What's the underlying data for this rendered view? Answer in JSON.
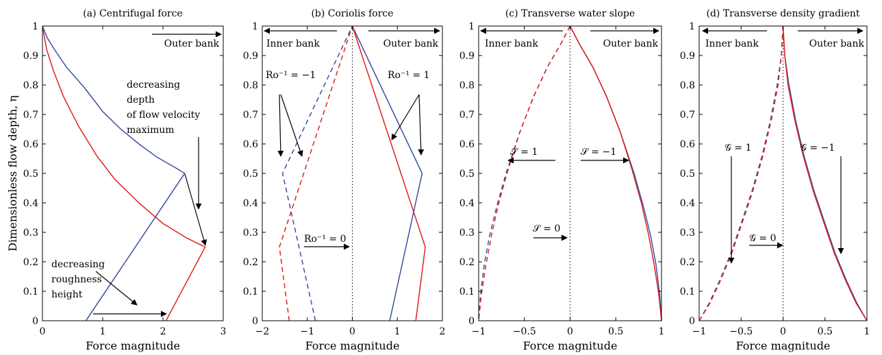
{
  "figure": {
    "ylabel": "Dimensionless flow depth, η",
    "colors": {
      "blue": "#3a4fa0",
      "red": "#e02020",
      "black": "#000000",
      "gray": "#444444"
    }
  },
  "chart_data": [
    {
      "type": "line",
      "title": "(a) Centrifugal force",
      "xlabel": "Force magnitude",
      "xlim": [
        0,
        3
      ],
      "ylim": [
        0,
        1
      ],
      "xticks": [
        "0",
        "1",
        "2",
        "3"
      ],
      "yticks": [
        "0",
        "0.1",
        "0.2",
        "0.3",
        "0.4",
        "0.5",
        "0.6",
        "0.7",
        "0.8",
        "0.9",
        "1"
      ],
      "series": [
        {
          "color": "blue",
          "dashed": false,
          "points": [
            [
              0.72,
              0
            ],
            [
              2.36,
              0.5
            ],
            [
              2.2,
              0.52
            ],
            [
              1.9,
              0.555
            ],
            [
              1.6,
              0.6
            ],
            [
              1.3,
              0.65
            ],
            [
              1.0,
              0.71
            ],
            [
              0.7,
              0.79
            ],
            [
              0.4,
              0.86
            ],
            [
              0.2,
              0.92
            ],
            [
              0.08,
              0.96
            ],
            [
              0,
              1
            ]
          ]
        },
        {
          "color": "red",
          "dashed": false,
          "points": [
            [
              2.05,
              0
            ],
            [
              2.7,
              0.25
            ],
            [
              2.4,
              0.28
            ],
            [
              2.0,
              0.33
            ],
            [
              1.6,
              0.4
            ],
            [
              1.2,
              0.48
            ],
            [
              0.9,
              0.56
            ],
            [
              0.6,
              0.66
            ],
            [
              0.35,
              0.76
            ],
            [
              0.18,
              0.85
            ],
            [
              0.07,
              0.92
            ],
            [
              0,
              1
            ]
          ]
        }
      ],
      "annotations": [
        {
          "text": "Outer bank"
        },
        {
          "text": "decreasing"
        },
        {
          "text": "depth"
        },
        {
          "text": "of flow velocity"
        },
        {
          "text": "maximum"
        },
        {
          "text": "decreasing"
        },
        {
          "text": "roughness"
        },
        {
          "text": "height"
        }
      ]
    },
    {
      "type": "line",
      "title": "(b) Coriolis force",
      "xlabel": "Force magnitude",
      "xlim": [
        -2,
        2
      ],
      "ylim": [
        0,
        1
      ],
      "xticks": [
        "−2",
        "−1",
        "0",
        "1",
        "2"
      ],
      "yticks": [
        "0",
        "0.1",
        "0.2",
        "0.3",
        "0.4",
        "0.5",
        "0.6",
        "0.7",
        "0.8",
        "0.9",
        "1"
      ],
      "series": [
        {
          "color": "blue",
          "dashed": false,
          "points": [
            [
              0.83,
              0
            ],
            [
              1.55,
              0.5
            ],
            [
              0,
              1
            ]
          ]
        },
        {
          "color": "red",
          "dashed": false,
          "points": [
            [
              1.41,
              0
            ],
            [
              1.62,
              0.25
            ],
            [
              0,
              1
            ]
          ]
        },
        {
          "color": "blue",
          "dashed": true,
          "points": [
            [
              -0.82,
              0
            ],
            [
              -1.55,
              0.5
            ],
            [
              0,
              1
            ]
          ]
        },
        {
          "color": "red",
          "dashed": true,
          "points": [
            [
              -1.4,
              0
            ],
            [
              -1.62,
              0.25
            ],
            [
              0,
              1
            ]
          ]
        }
      ],
      "annotations": [
        {
          "text": "Inner bank"
        },
        {
          "text": "Outer bank"
        },
        {
          "text": "Ro⁻¹ = −1"
        },
        {
          "text": "Ro⁻¹ = 1"
        },
        {
          "text": "Ro⁻¹ = 0"
        }
      ]
    },
    {
      "type": "line",
      "title": "(c) Transverse water slope",
      "xlabel": "Force magnitude",
      "xlim": [
        -1,
        1
      ],
      "ylim": [
        0,
        1
      ],
      "xticks": [
        "−1",
        "−0.5",
        "0",
        "0.5",
        "1"
      ],
      "yticks": [
        "0",
        "0.1",
        "0.2",
        "0.3",
        "0.4",
        "0.5",
        "0.6",
        "0.7",
        "0.8",
        "0.9",
        "1"
      ],
      "series": [
        {
          "color": "blue",
          "dashed": false,
          "points": [
            [
              0,
              1
            ],
            [
              0.1,
              0.94
            ],
            [
              0.25,
              0.86
            ],
            [
              0.4,
              0.76
            ],
            [
              0.55,
              0.64
            ],
            [
              0.7,
              0.5
            ],
            [
              0.8,
              0.39
            ],
            [
              0.88,
              0.29
            ],
            [
              0.94,
              0.19
            ],
            [
              0.98,
              0.09
            ],
            [
              1.0,
              0
            ]
          ]
        },
        {
          "color": "red",
          "dashed": false,
          "points": [
            [
              0,
              1
            ],
            [
              0.1,
              0.94
            ],
            [
              0.25,
              0.86
            ],
            [
              0.4,
              0.76
            ],
            [
              0.55,
              0.64
            ],
            [
              0.68,
              0.51
            ],
            [
              0.78,
              0.4
            ],
            [
              0.86,
              0.29
            ],
            [
              0.92,
              0.19
            ],
            [
              0.97,
              0.09
            ],
            [
              1.0,
              0
            ]
          ]
        },
        {
          "color": "blue",
          "dashed": true,
          "points": [
            [
              0,
              1
            ],
            [
              -0.1,
              0.94
            ],
            [
              -0.25,
              0.86
            ],
            [
              -0.4,
              0.76
            ],
            [
              -0.55,
              0.64
            ],
            [
              -0.7,
              0.5
            ],
            [
              -0.8,
              0.39
            ],
            [
              -0.88,
              0.29
            ],
            [
              -0.94,
              0.19
            ],
            [
              -0.98,
              0.09
            ],
            [
              -1.0,
              0
            ]
          ]
        },
        {
          "color": "red",
          "dashed": true,
          "points": [
            [
              0,
              1
            ],
            [
              -0.1,
              0.94
            ],
            [
              -0.25,
              0.86
            ],
            [
              -0.4,
              0.76
            ],
            [
              -0.55,
              0.64
            ],
            [
              -0.68,
              0.51
            ],
            [
              -0.78,
              0.4
            ],
            [
              -0.86,
              0.29
            ],
            [
              -0.92,
              0.19
            ],
            [
              -0.97,
              0.09
            ],
            [
              -1.0,
              0
            ]
          ]
        }
      ],
      "annotations": [
        {
          "text": "Inner bank"
        },
        {
          "text": "Outer bank"
        },
        {
          "text": "𝒮 = 1"
        },
        {
          "text": "𝒮 = −1"
        },
        {
          "text": "𝒮 = 0"
        }
      ]
    },
    {
      "type": "line",
      "title": "(d) Transverse density gradient",
      "xlabel": "Force magnitude",
      "xlim": [
        -1,
        1
      ],
      "ylim": [
        0,
        1
      ],
      "xticks": [
        "−1",
        "−0.5",
        "0",
        "0.5",
        "1"
      ],
      "yticks": [
        "0",
        "0.1",
        "0.2",
        "0.3",
        "0.4",
        "0.5",
        "0.6",
        "0.7",
        "0.8",
        "0.9",
        "1"
      ],
      "series": [
        {
          "color": "blue",
          "dashed": false,
          "points": [
            [
              0,
              1
            ],
            [
              0.02,
              0.9
            ],
            [
              0.07,
              0.8
            ],
            [
              0.15,
              0.68
            ],
            [
              0.25,
              0.56
            ],
            [
              0.37,
              0.44
            ],
            [
              0.5,
              0.33
            ],
            [
              0.62,
              0.23
            ],
            [
              0.75,
              0.14
            ],
            [
              0.88,
              0.06
            ],
            [
              1.0,
              0
            ]
          ]
        },
        {
          "color": "red",
          "dashed": false,
          "points": [
            [
              0,
              1
            ],
            [
              0.02,
              0.9
            ],
            [
              0.06,
              0.8
            ],
            [
              0.14,
              0.68
            ],
            [
              0.24,
              0.56
            ],
            [
              0.36,
              0.44
            ],
            [
              0.49,
              0.33
            ],
            [
              0.61,
              0.23
            ],
            [
              0.74,
              0.14
            ],
            [
              0.87,
              0.06
            ],
            [
              1.0,
              0
            ]
          ]
        },
        {
          "color": "blue",
          "dashed": true,
          "points": [
            [
              0,
              1
            ],
            [
              -0.02,
              0.9
            ],
            [
              -0.07,
              0.8
            ],
            [
              -0.15,
              0.68
            ],
            [
              -0.25,
              0.56
            ],
            [
              -0.37,
              0.44
            ],
            [
              -0.5,
              0.33
            ],
            [
              -0.62,
              0.23
            ],
            [
              -0.75,
              0.14
            ],
            [
              -0.88,
              0.06
            ],
            [
              -1.0,
              0
            ]
          ]
        },
        {
          "color": "red",
          "dashed": true,
          "points": [
            [
              0,
              1
            ],
            [
              -0.02,
              0.9
            ],
            [
              -0.06,
              0.8
            ],
            [
              -0.14,
              0.68
            ],
            [
              -0.24,
              0.56
            ],
            [
              -0.36,
              0.44
            ],
            [
              -0.49,
              0.33
            ],
            [
              -0.61,
              0.23
            ],
            [
              -0.74,
              0.14
            ],
            [
              -0.87,
              0.06
            ],
            [
              -1.0,
              0
            ]
          ]
        }
      ],
      "annotations": [
        {
          "text": "Inner bank"
        },
        {
          "text": "Outer bank"
        },
        {
          "text": "𝒢 = 1"
        },
        {
          "text": "𝒢 = −1"
        },
        {
          "text": "𝒢 = 0"
        }
      ]
    }
  ]
}
